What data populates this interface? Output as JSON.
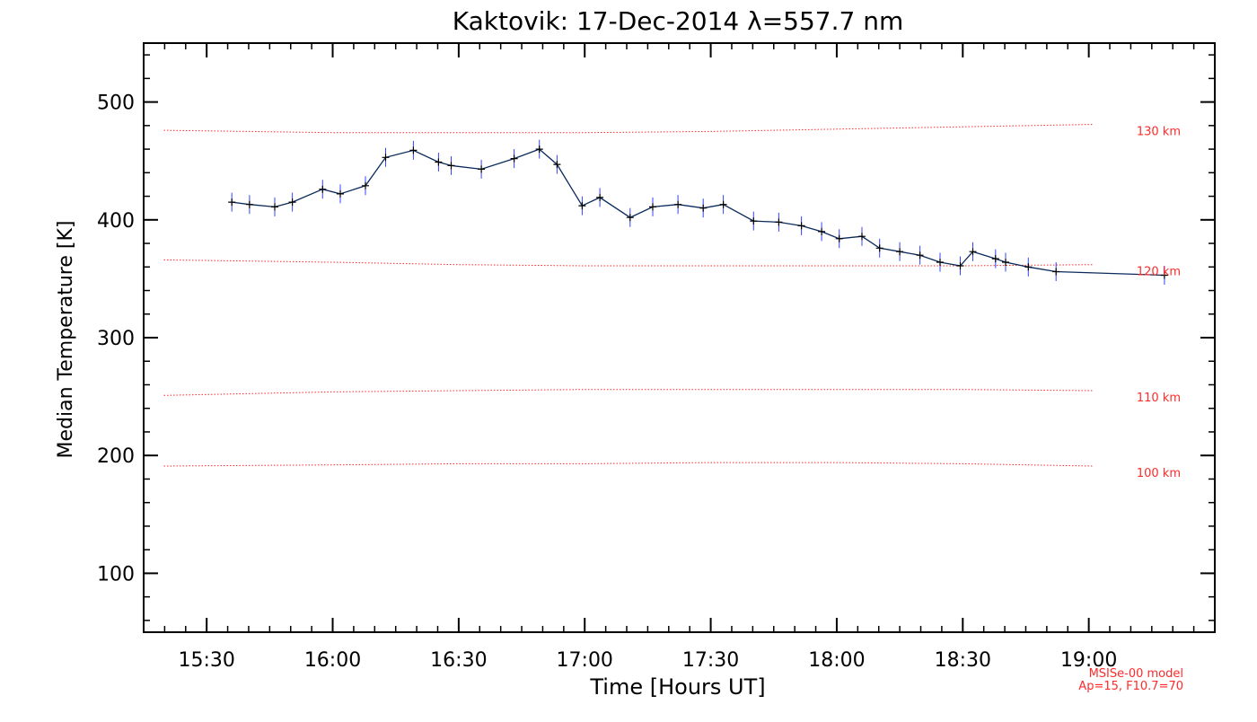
{
  "chart_data": {
    "type": "line",
    "title": "Kaktovik: 17-Dec-2014 λ=557.7 nm",
    "xlabel": "Time [Hours UT]",
    "ylabel": "Median Temperature [K]",
    "xlim": [
      15.25,
      19.5
    ],
    "ylim": [
      50,
      550
    ],
    "x_ticks": [
      15.5,
      16.0,
      16.5,
      17.0,
      17.5,
      18.0,
      18.5,
      19.0
    ],
    "x_tick_labels": [
      "15:30",
      "16:00",
      "16:30",
      "17:00",
      "17:30",
      "18:00",
      "18:30",
      "19:00"
    ],
    "y_ticks": [
      100,
      200,
      300,
      400,
      500
    ],
    "y_tick_labels": [
      "100",
      "200",
      "300",
      "400",
      "500"
    ],
    "grid": false,
    "series": [
      {
        "name": "Median Temperature",
        "color": "#0a2a5c",
        "errorbar_color": "#3344ff",
        "error": 8,
        "x": [
          15.6,
          15.67,
          15.77,
          15.84,
          15.96,
          16.03,
          16.13,
          16.21,
          16.32,
          16.42,
          16.47,
          16.59,
          16.72,
          16.82,
          16.89,
          16.99,
          17.06,
          17.18,
          17.27,
          17.37,
          17.47,
          17.55,
          17.67,
          17.77,
          17.86,
          17.94,
          18.01,
          18.1,
          18.17,
          18.25,
          18.33,
          18.41,
          18.49,
          18.54,
          18.63,
          18.67,
          18.76,
          18.87,
          19.3
        ],
        "y": [
          415,
          413,
          411,
          415,
          426,
          422,
          429,
          453,
          459,
          449,
          446,
          443,
          452,
          460,
          447,
          412,
          419,
          402,
          411,
          413,
          410,
          413,
          399,
          398,
          395,
          390,
          384,
          386,
          376,
          373,
          370,
          364,
          361,
          373,
          367,
          364,
          360,
          356,
          353
        ]
      }
    ],
    "model_lines": [
      {
        "label": "130 km",
        "color": "#ff2a2a",
        "x": [
          15.33,
          16.0,
          16.5,
          17.0,
          17.5,
          18.0,
          18.5,
          19.02
        ],
        "y": [
          476,
          474,
          474,
          474,
          475,
          477,
          479,
          481
        ]
      },
      {
        "label": "120 km",
        "color": "#ff2a2a",
        "x": [
          15.33,
          16.0,
          16.5,
          17.0,
          17.5,
          18.0,
          18.5,
          19.02
        ],
        "y": [
          366,
          364,
          362,
          361,
          361,
          361,
          361,
          362
        ]
      },
      {
        "label": "110 km",
        "color": "#ff2a2a",
        "x": [
          15.33,
          16.0,
          16.5,
          17.0,
          17.5,
          18.0,
          18.5,
          19.02
        ],
        "y": [
          251,
          254,
          255,
          256,
          256,
          256,
          256,
          255
        ]
      },
      {
        "label": "100 km",
        "color": "#ff2a2a",
        "x": [
          15.33,
          16.0,
          16.5,
          17.0,
          17.5,
          18.0,
          18.5,
          19.02
        ],
        "y": [
          191,
          192,
          193,
          193,
          194,
          194,
          193,
          191
        ]
      }
    ],
    "annotations": [
      "MSISe-00 model",
      "Ap=15, F10.7=70"
    ]
  }
}
